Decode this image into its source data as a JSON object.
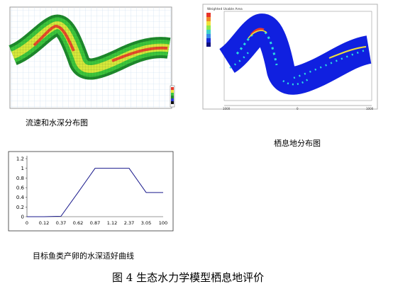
{
  "captions": {
    "velocity_depth": "流速和水深分布图",
    "habitat": "栖息地分布图",
    "suitability": "目标鱼类产卵的水深适好曲线",
    "figure": "图 4  生态水力学模型栖息地评价"
  },
  "habitat_panel": {
    "legend_title": "Weighted Usable Area",
    "x_ticks": [
      "1000",
      "0",
      "1000"
    ]
  },
  "chart_data": {
    "type": "line",
    "categories": [
      "0",
      "0.12",
      "0.37",
      "0.62",
      "0.87",
      "1.12",
      "2.37",
      "3.05",
      "100"
    ],
    "values": [
      0,
      0,
      0.01,
      0.5,
      1.0,
      1.0,
      1.0,
      0.5,
      0.5
    ],
    "y_ticks": [
      "0",
      "0.2",
      "0.4",
      "0.6",
      "0.8",
      "1",
      "1.2"
    ],
    "ylim": [
      0,
      1.2
    ],
    "title": "",
    "xlabel": "",
    "ylabel": "",
    "line_color": "#1a1a8c"
  }
}
